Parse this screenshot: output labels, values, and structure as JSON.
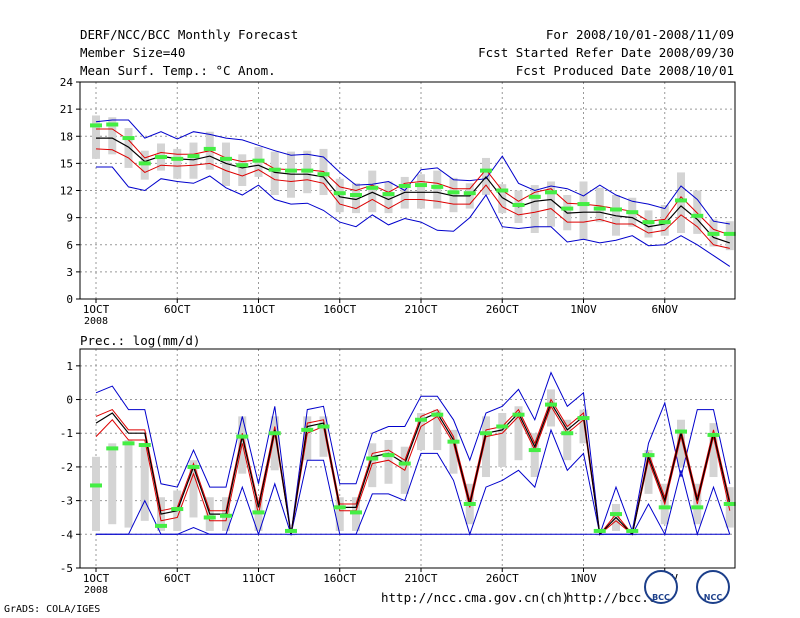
{
  "header": {
    "title": "DERF/NCC/BCC Monthly Forecast",
    "member_size": "Member Size=40",
    "variable": "Mean Surf. Temp.: °C Anom.",
    "period": "For 2008/10/01-2008/11/09",
    "fcst_started": "Fcst Started Refer Date 2008/09/30",
    "fcst_produced": "Fcst Produced Date 2008/10/01"
  },
  "footer": {
    "grads": "GrADS: COLA/IGES",
    "url1": "http://ncc.cma.gov.cn(ch)",
    "url2": "http://bcc.c",
    "logo1": "BCC",
    "logo2": "NCC"
  },
  "colors": {
    "envelope": "#0000cc",
    "spread": "#dd0000",
    "mean": "#000000",
    "median": "#44ee44",
    "box": "#d4d4d4",
    "grid": "#999999"
  },
  "chart_data": [
    {
      "type": "line",
      "title": "Mean Surf. Temp.: °C Anom.",
      "x_tick_labels": [
        "1OCT",
        "6OCT",
        "11OCT",
        "16OCT",
        "21OCT",
        "26OCT",
        "1NOV",
        "6NOV"
      ],
      "x_year_label": "2008",
      "days": [
        1,
        40
      ],
      "ylim": [
        0,
        24
      ],
      "y_ticks": [
        0,
        3,
        6,
        9,
        12,
        15,
        18,
        21,
        24
      ],
      "series": [
        {
          "name": "max",
          "values": [
            19.6,
            19.8,
            19.8,
            17.8,
            18.5,
            17.7,
            18.5,
            18.2,
            17.8,
            17.6,
            17.0,
            16.4,
            15.9,
            16.0,
            15.7,
            14.0,
            12.6,
            12.7,
            13.0,
            12.0,
            14.3,
            14.5,
            13.2,
            13.1,
            13.3,
            15.8,
            12.8,
            12.0,
            12.5,
            12.2,
            11.4,
            12.6,
            11.5,
            10.8,
            10.5,
            10.0,
            12.5,
            11.0,
            8.6,
            8.3
          ]
        },
        {
          "name": "upper",
          "values": [
            18.8,
            18.8,
            17.6,
            15.6,
            16.2,
            16.0,
            16.0,
            16.4,
            15.6,
            15.2,
            15.4,
            14.4,
            14.3,
            14.3,
            14.1,
            12.4,
            12.0,
            12.6,
            11.8,
            12.8,
            13.0,
            12.8,
            12.2,
            12.2,
            14.3,
            12.0,
            10.8,
            11.8,
            12.2,
            10.6,
            10.5,
            10.3,
            10.0,
            9.7,
            8.6,
            8.8,
            11.3,
            9.5,
            7.7,
            7.1
          ]
        },
        {
          "name": "mean",
          "values": [
            17.8,
            17.8,
            16.8,
            15.2,
            15.8,
            15.5,
            15.4,
            15.8,
            15.0,
            14.5,
            14.8,
            14.0,
            13.8,
            13.8,
            13.5,
            11.3,
            11.0,
            11.8,
            11.0,
            11.8,
            11.8,
            11.8,
            11.4,
            11.4,
            13.5,
            11.2,
            10.2,
            10.8,
            11.0,
            9.5,
            9.6,
            9.6,
            9.2,
            9.0,
            8.0,
            8.3,
            10.3,
            8.8,
            6.8,
            6.2
          ]
        },
        {
          "name": "lower",
          "values": [
            16.6,
            16.5,
            15.6,
            14.0,
            14.8,
            14.7,
            14.8,
            15.0,
            14.2,
            13.6,
            14.3,
            13.2,
            13.0,
            13.2,
            12.8,
            10.5,
            10.0,
            11.0,
            10.0,
            11.0,
            11.0,
            10.8,
            10.5,
            10.5,
            12.6,
            10.2,
            9.3,
            9.6,
            10.0,
            8.5,
            8.5,
            8.8,
            8.3,
            8.3,
            7.3,
            7.6,
            9.3,
            8.0,
            6.0,
            5.6
          ]
        },
        {
          "name": "min",
          "values": [
            14.6,
            14.6,
            12.4,
            12.0,
            13.3,
            13.0,
            12.8,
            13.6,
            12.3,
            11.5,
            12.6,
            11.0,
            10.5,
            10.6,
            9.8,
            8.5,
            8.0,
            9.3,
            8.2,
            8.9,
            8.5,
            7.6,
            7.5,
            9.0,
            11.5,
            8.0,
            7.8,
            8.0,
            8.0,
            6.3,
            6.6,
            6.2,
            6.5,
            7.0,
            5.9,
            6.0,
            7.0,
            6.0,
            4.8,
            3.6
          ]
        },
        {
          "name": "median",
          "values": [
            19.2,
            19.3,
            17.8,
            15.0,
            15.7,
            15.5,
            15.8,
            16.6,
            15.5,
            14.8,
            15.3,
            14.3,
            14.2,
            14.2,
            13.8,
            11.7,
            11.5,
            12.3,
            11.6,
            12.5,
            12.6,
            12.4,
            11.8,
            11.7,
            14.2,
            12.0,
            10.4,
            11.3,
            11.8,
            10.0,
            10.5,
            10.0,
            9.9,
            9.6,
            8.5,
            8.5,
            10.9,
            9.2,
            7.2,
            7.2
          ]
        },
        {
          "name": "box_top",
          "values": [
            20.3,
            20.1,
            18.9,
            16.4,
            17.2,
            16.6,
            17.3,
            18.5,
            17.3,
            16.0,
            16.8,
            16.3,
            16.3,
            16.4,
            16.6,
            13.3,
            12.8,
            14.2,
            13.0,
            13.5,
            13.8,
            14.2,
            13.4,
            12.8,
            15.6,
            12.7,
            12.0,
            12.6,
            13.0,
            11.5,
            13.0,
            12.3,
            11.5,
            11.2,
            9.8,
            10.4,
            14.0,
            12.0,
            8.8,
            8.6
          ]
        },
        {
          "name": "box_bottom",
          "values": [
            15.5,
            16.0,
            14.5,
            13.2,
            14.2,
            13.3,
            13.3,
            14.3,
            12.5,
            12.5,
            13.5,
            11.5,
            11.2,
            11.7,
            11.5,
            9.6,
            9.5,
            9.6,
            9.5,
            10.0,
            10.0,
            10.0,
            9.6,
            10.0,
            11.5,
            9.5,
            8.4,
            7.3,
            8.0,
            7.6,
            6.6,
            8.5,
            7.0,
            8.0,
            6.8,
            7.0,
            7.3,
            7.2,
            5.8,
            5.4
          ]
        }
      ]
    },
    {
      "type": "line",
      "title": "Prec.: log(mm/d)",
      "x_tick_labels": [
        "1OCT",
        "6OCT",
        "11OCT",
        "16OCT",
        "21OCT",
        "26OCT",
        "1NOV",
        "6NOV"
      ],
      "x_year_label": "2008",
      "days": [
        1,
        40
      ],
      "ylim": [
        -5,
        1.5
      ],
      "y_ticks": [
        -5,
        -4,
        -3,
        -2,
        -1,
        0,
        1
      ],
      "series": [
        {
          "name": "max",
          "values": [
            0.2,
            0.4,
            -0.3,
            -0.3,
            -2.5,
            -2.6,
            -1.5,
            -2.6,
            -2.6,
            -0.5,
            -2.5,
            -0.2,
            -4.0,
            -0.3,
            -0.2,
            -2.5,
            -2.5,
            -1.0,
            -0.8,
            -0.8,
            0.1,
            0.1,
            -0.6,
            -1.8,
            -0.4,
            -0.2,
            0.3,
            -0.6,
            0.8,
            -0.2,
            0.2,
            -4.0,
            -2.6,
            -3.9,
            -1.3,
            -0.1,
            -2.3,
            -0.3,
            -0.3,
            -2.5
          ]
        },
        {
          "name": "upper",
          "values": [
            -0.5,
            -0.3,
            -0.9,
            -0.9,
            -3.3,
            -3.2,
            -1.9,
            -3.3,
            -3.3,
            -1.0,
            -3.1,
            -0.8,
            -4.0,
            -0.7,
            -0.6,
            -3.1,
            -3.1,
            -1.6,
            -1.5,
            -1.8,
            -0.5,
            -0.3,
            -1.1,
            -3.0,
            -0.9,
            -0.8,
            -0.3,
            -1.3,
            0.0,
            -0.8,
            -0.4,
            -4.0,
            -3.4,
            -4.0,
            -1.6,
            -2.9,
            -0.9,
            -2.9,
            -0.9,
            -3.0
          ]
        },
        {
          "name": "mean",
          "values": [
            -0.7,
            -0.4,
            -1.0,
            -1.0,
            -3.4,
            -3.3,
            -2.0,
            -3.4,
            -3.4,
            -1.1,
            -3.2,
            -0.9,
            -4.0,
            -0.8,
            -0.7,
            -3.2,
            -3.2,
            -1.7,
            -1.6,
            -1.9,
            -0.6,
            -0.4,
            -1.2,
            -3.1,
            -1.0,
            -0.9,
            -0.4,
            -1.4,
            -0.1,
            -0.9,
            -0.5,
            -4.0,
            -3.5,
            -4.0,
            -1.7,
            -3.0,
            -1.0,
            -3.0,
            -1.0,
            -3.1
          ]
        },
        {
          "name": "lower",
          "values": [
            -1.1,
            -0.6,
            -1.2,
            -1.2,
            -3.6,
            -3.5,
            -2.2,
            -3.6,
            -3.6,
            -1.3,
            -3.4,
            -1.0,
            -4.0,
            -1.0,
            -0.8,
            -3.3,
            -3.3,
            -1.9,
            -1.8,
            -2.1,
            -0.8,
            -0.5,
            -1.3,
            -3.2,
            -1.1,
            -1.0,
            -0.5,
            -1.5,
            -0.2,
            -1.0,
            -0.6,
            -4.0,
            -3.6,
            -4.0,
            -1.8,
            -3.1,
            -1.1,
            -3.1,
            -1.1,
            -3.3
          ]
        },
        {
          "name": "min",
          "values": [
            -4.0,
            -4.0,
            -4.0,
            -3.0,
            -4.0,
            -4.0,
            -3.8,
            -4.0,
            -4.0,
            -2.6,
            -4.0,
            -2.5,
            -4.0,
            -1.8,
            -1.8,
            -4.0,
            -4.0,
            -2.8,
            -2.8,
            -3.0,
            -1.6,
            -1.6,
            -2.4,
            -4.0,
            -2.6,
            -2.4,
            -2.1,
            -2.6,
            -0.9,
            -2.1,
            -1.6,
            -4.0,
            -4.0,
            -4.0,
            -3.1,
            -4.0,
            -2.1,
            -4.0,
            -2.6,
            -4.0
          ]
        },
        {
          "name": "median",
          "values": [
            -2.55,
            -1.45,
            -1.3,
            -1.35,
            -3.75,
            -3.25,
            -2.0,
            -3.5,
            -3.45,
            -1.1,
            -3.35,
            -1.0,
            -3.9,
            -0.9,
            -0.8,
            -3.2,
            -3.35,
            -1.75,
            -1.65,
            -1.9,
            -0.6,
            -0.45,
            -1.25,
            -3.1,
            -1.0,
            -0.8,
            -0.45,
            -1.5,
            -0.15,
            -1.0,
            -0.55,
            -3.9,
            -3.4,
            -3.9,
            -1.65,
            -3.2,
            -0.95,
            -3.2,
            -1.05,
            -3.1
          ]
        },
        {
          "name": "box_top",
          "values": [
            -1.7,
            -1.3,
            -1.2,
            -1.3,
            -2.9,
            -2.7,
            -1.8,
            -2.9,
            -2.9,
            -0.5,
            -2.9,
            -0.5,
            -4.0,
            -0.5,
            -0.5,
            -2.9,
            -2.9,
            -1.3,
            -1.2,
            -1.4,
            -0.4,
            -0.3,
            -0.9,
            -2.5,
            -0.5,
            -0.4,
            -0.2,
            -1.0,
            0.3,
            -0.6,
            -0.3,
            -4.0,
            -3.1,
            -4.0,
            -1.5,
            -2.5,
            -0.6,
            -2.5,
            -0.7,
            -2.6
          ]
        },
        {
          "name": "box_bottom",
          "values": [
            -3.9,
            -3.7,
            -3.8,
            -3.6,
            -3.9,
            -3.9,
            -3.5,
            -3.9,
            -3.9,
            -2.2,
            -3.9,
            -2.1,
            -4.0,
            -1.8,
            -1.7,
            -3.9,
            -3.9,
            -2.6,
            -2.5,
            -2.8,
            -1.5,
            -1.5,
            -2.2,
            -3.7,
            -2.3,
            -2.0,
            -1.8,
            -2.3,
            -0.8,
            -1.8,
            -1.3,
            -4.0,
            -3.9,
            -4.0,
            -2.8,
            -3.7,
            -2.0,
            -3.7,
            -2.3,
            -3.8
          ]
        }
      ]
    }
  ]
}
